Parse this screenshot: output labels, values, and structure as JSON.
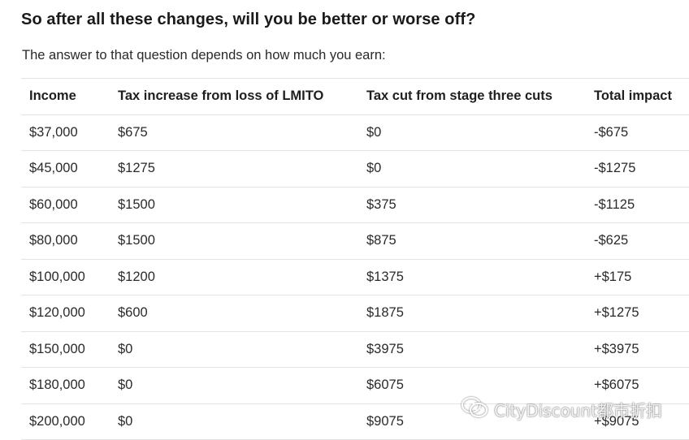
{
  "heading": "So after all these changes, will you be better or worse off?",
  "intro": "The answer to that question depends on how much you earn:",
  "table": {
    "headers": [
      "Income",
      "Tax increase from loss of LMITO",
      "Tax cut from stage three cuts",
      "Total impact"
    ],
    "rows": [
      [
        "$37,000",
        "$675",
        "$0",
        "-$675"
      ],
      [
        "$45,000",
        "$1275",
        "$0",
        "-$1275"
      ],
      [
        "$60,000",
        "$1500",
        "$375",
        "-$1125"
      ],
      [
        "$80,000",
        "$1500",
        "$875",
        "-$625"
      ],
      [
        "$100,000",
        "$1200",
        "$1375",
        "+$175"
      ],
      [
        "$120,000",
        "$600",
        "$1875",
        "+$1275"
      ],
      [
        "$150,000",
        "$0",
        "$3975",
        "+$3975"
      ],
      [
        "$180,000",
        "$0",
        "$6075",
        "+$6075"
      ],
      [
        "$200,000",
        "$0",
        "$9075",
        "+$9075"
      ]
    ]
  },
  "watermark": {
    "text": "CityDiscount都市折扣",
    "icon": "wechat-icon"
  }
}
